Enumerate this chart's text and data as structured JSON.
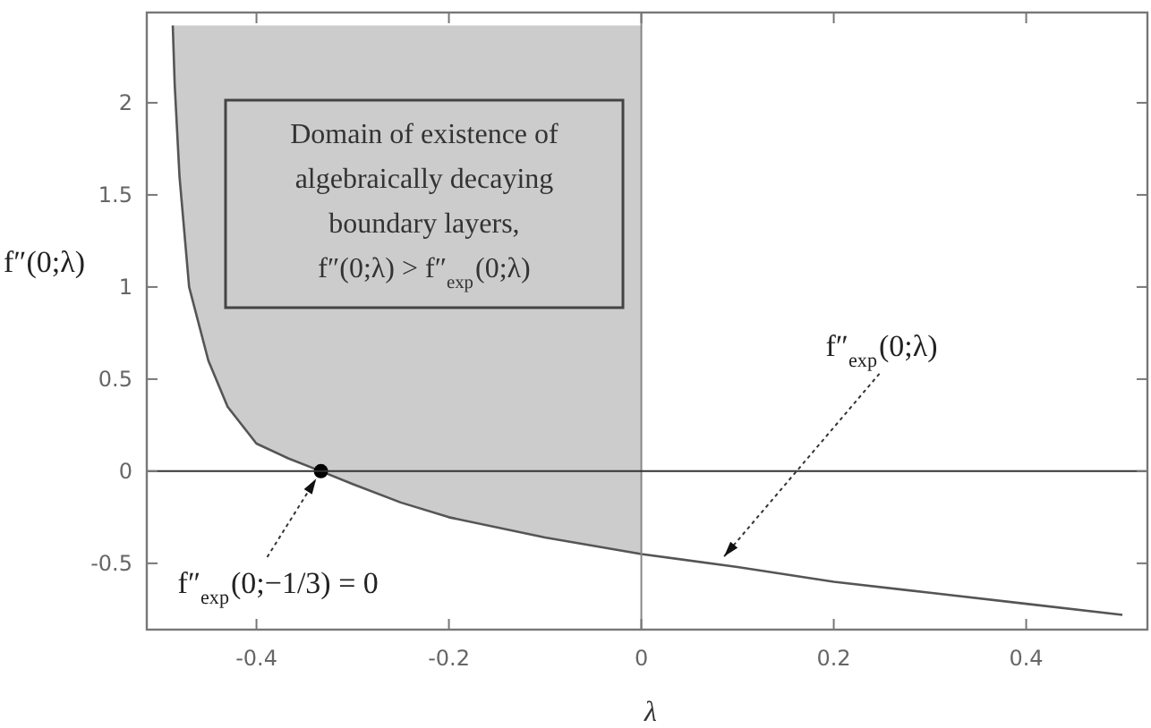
{
  "chart_data": {
    "type": "line",
    "xlabel": "λ",
    "ylabel": "f″(0;λ)",
    "xlim": [
      -0.514,
      0.526
    ],
    "ylim": [
      -0.86,
      2.49
    ],
    "xticks": [
      -0.4,
      -0.2,
      0,
      0.2,
      0.4
    ],
    "yticks": [
      -0.5,
      0,
      0.5,
      1,
      1.5,
      2
    ],
    "grid": false,
    "series": [
      {
        "color": "#555555",
        "x": [
          -0.487,
          -0.485,
          -0.48,
          -0.47,
          -0.45,
          -0.43,
          -0.4,
          -0.367,
          -0.333,
          -0.3,
          -0.25,
          -0.2,
          -0.1,
          0,
          0.1,
          0.2,
          0.3,
          0.4,
          0.5
        ],
        "values": [
          2.42,
          2.1,
          1.6,
          1.0,
          0.6,
          0.35,
          0.15,
          0.07,
          0,
          -0.07,
          -0.17,
          -0.25,
          -0.36,
          -0.45,
          -0.52,
          -0.6,
          -0.66,
          -0.72,
          -0.78
        ],
        "lower": [
          2.42,
          2.1,
          1.6,
          1.0,
          0.6,
          0.35,
          0.15,
          0.07,
          0,
          -0.07,
          -0.17,
          -0.25,
          -0.36,
          -0.45,
          null,
          null,
          null,
          null,
          null
        ],
        "upper": [
          2.42,
          2.42,
          2.42,
          2.42,
          2.42,
          2.42,
          2.42,
          2.42,
          2.42,
          2.42,
          2.42,
          2.42,
          2.42,
          2.42,
          null,
          null,
          null,
          null,
          null
        ]
      },
      {
        "type": "scatter",
        "color": "#000000",
        "marker": "circle",
        "x": [
          -0.333
        ],
        "values": [
          0
        ]
      }
    ],
    "ref_lines": [
      {
        "axis": "x",
        "value": 0,
        "color": "#888888"
      },
      {
        "axis": "y",
        "value": 0,
        "color": "#333333"
      }
    ],
    "annotations": [
      "Domain of existence of algebraically decaying boundary layers, f″(0;λ) > f″$_{exp}$(0;λ)",
      {
        "text": "f″$_{exp}$(0;λ)",
        "x": 0.08,
        "y": -0.5
      },
      {
        "text": "f″$_{exp}$(0;−1/3) = 0",
        "x": -0.333,
        "y": 0
      }
    ]
  }
}
